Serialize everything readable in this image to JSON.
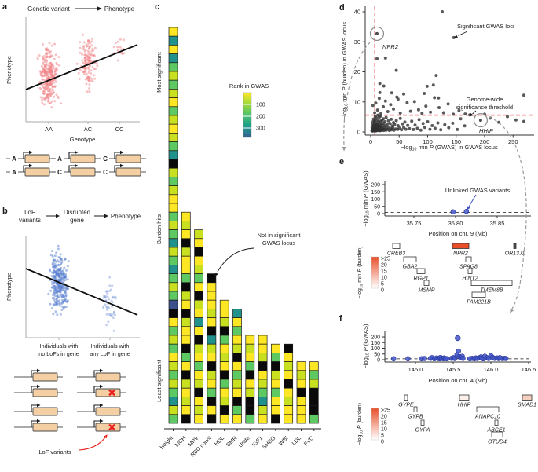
{
  "panels": {
    "a": {
      "label": "a",
      "title_left": "Genetic variant",
      "title_right": "Phenotype",
      "ylabel": "Phenotype",
      "xlabel": "Genotype"
    },
    "b": {
      "label": "b",
      "t1": "LoF",
      "t2": "variants",
      "t3": "Disrupted",
      "t4": "gene",
      "t5": "Phenotype",
      "ylabel": "Phenotype",
      "g1a": "Individuals with",
      "g1b": "no LoFs in gene",
      "g2a": "Individuals with",
      "g2b": "any LoF in gene",
      "lof_label": "LoF variants"
    },
    "c": {
      "label": "c",
      "most": "Most significant",
      "mid": "Burden hits",
      "least": "Least significant",
      "cbar_title": "Rank in GWAS",
      "ann1": "Not in significant",
      "ann2": "GWAS locus"
    },
    "d": {
      "label": "d",
      "ann_sig": "Significant GWAS loci",
      "ann_thr1": "Genome-wide",
      "ann_thr2": "significance threshold",
      "npr2": "NPR2",
      "hhip": "HHIP"
    },
    "e": {
      "label": "e",
      "ann": "Unlinked GWAS variants",
      "xlabel": "Position on chr. 9 (Mb)"
    },
    "f": {
      "label": "f",
      "xlabel": "Position on chr. 4 (Mb)"
    }
  },
  "colors": {
    "red_scatter": "#f2868a",
    "blue_scatter": "#5a7fd0",
    "gene_box": "#f4cfa4",
    "gene_border": "#4a4a4a",
    "lof_red": "#e8231f",
    "dark_dot": "#2f2f2f",
    "threshold_red": "#e8262a",
    "blue_dot": "#4356c9",
    "blue_dot_edge": "#2b3a9e",
    "burden_red": "#e8502b",
    "smad1_pink": "#f5cfc0",
    "connector": "#9a9a9a",
    "viridis": {
      "Y": "#fde725",
      "C": "#c8e020",
      "G": "#5ec962",
      "T": "#21918c",
      "B": "#3b528b",
      "K": "#0a0a0a"
    }
  },
  "chart_data": [
    {
      "id": "a",
      "type": "scatter",
      "categories": [
        "AA",
        "AC",
        "CC"
      ],
      "alleles": [
        [
          "A",
          "A"
        ],
        [
          "A",
          "C"
        ],
        [
          "C",
          "C"
        ]
      ],
      "clusters": [
        {
          "cx": 62,
          "xs": 5.5,
          "cy": 96,
          "ys": 30,
          "n": 300
        },
        {
          "cx": 112,
          "xs": 5,
          "cy": 80,
          "ys": 27,
          "n": 140
        },
        {
          "cx": 152,
          "xs": 4,
          "cy": 62,
          "ys": 13,
          "n": 18
        }
      ],
      "trend": [
        33,
        114,
        175,
        57
      ]
    },
    {
      "id": "b",
      "type": "scatter",
      "clusters": [
        {
          "cx": 75,
          "xs": 5.5,
          "cy": 100,
          "ys": 31,
          "n": 300
        },
        {
          "cx": 140,
          "xs": 5,
          "cy": 127,
          "ys": 27,
          "n": 48
        }
      ],
      "trend": [
        33,
        82,
        175,
        141
      ],
      "lof_rows": [
        1,
        3
      ]
    },
    {
      "id": "c",
      "type": "heatmap",
      "cbar_ticks": [
        100,
        200,
        300
      ],
      "cbar_max": 380,
      "traits": [
        {
          "name": "Height",
          "cells": "YTYTGCGCYGCYCGTKCGCYYGCGTCGTGCGBKYGCGYCGCGTCG"
        },
        {
          "name": "MCH",
          "cells": "YCYKCYYGKCYKCYYKGYKCYCYK"
        },
        {
          "name": "MPV",
          "cells": "CYKYCGYKCYTYKCYGYCKYCY"
        },
        {
          "name": "RBC count",
          "cells": "KYYYCYKTCYKCYGKYK"
        },
        {
          "name": "HDL",
          "cells": "YYCKGYCYKGYCKY"
        },
        {
          "name": "BMR",
          "cells": "TYGYCKYGCYKGY"
        },
        {
          "name": "Urate",
          "cells": "YCYGKYCKKG"
        },
        {
          "name": "IGF1",
          "cells": "YYCKYCGTCY"
        },
        {
          "name": "SHBG",
          "cells": "YGKCYGYYK"
        },
        {
          "name": "WBI",
          "cells": "KYCYKYCYY"
        },
        {
          "name": "LDL",
          "cells": "YCYKYYY"
        },
        {
          "name": "FVC",
          "cells": "YGCKKKG"
        }
      ]
    },
    {
      "id": "d",
      "type": "scatter",
      "xlim": [
        0,
        283
      ],
      "ylim": [
        0,
        42
      ],
      "xticks": [
        0,
        50,
        100,
        150,
        200,
        250
      ],
      "yticks": [
        0,
        10,
        20,
        30,
        40
      ],
      "sig_x": 7.3,
      "sig_y": 5.6,
      "xlabel": "−log_10_ min *P* (GWAS) in GWAS locus",
      "ylabel": "−log_10_ min *P* (burden) in GWAS locus",
      "highlights": [
        {
          "name": "NPR2",
          "x": 11,
          "y": 32.7
        },
        {
          "name": "HHIP",
          "x": 193,
          "y": 3.9
        }
      ],
      "points": [
        [
          2,
          0.4
        ],
        [
          2.5,
          1.5
        ],
        [
          3,
          0.8
        ],
        [
          3,
          2.6
        ],
        [
          3.5,
          0.3
        ],
        [
          4,
          1.2
        ],
        [
          4,
          3.4
        ],
        [
          4.5,
          0.6
        ],
        [
          5,
          2.1
        ],
        [
          5,
          0.9
        ],
        [
          5,
          4.3
        ],
        [
          5.5,
          1.7
        ],
        [
          6,
          0.4
        ],
        [
          6,
          2.9
        ],
        [
          6.5,
          1.1
        ],
        [
          7,
          0.6
        ],
        [
          7,
          3.7
        ],
        [
          7,
          1.9
        ],
        [
          7.5,
          0.3
        ],
        [
          8,
          2.4
        ],
        [
          8,
          0.9
        ],
        [
          8,
          5.1
        ],
        [
          8.5,
          1.4
        ],
        [
          9,
          0.5
        ],
        [
          9,
          3.1
        ],
        [
          9.5,
          2
        ],
        [
          10,
          0.8
        ],
        [
          10,
          4.6
        ],
        [
          10,
          1.6
        ],
        [
          10.5,
          0.4
        ],
        [
          11,
          2.7
        ],
        [
          11,
          1
        ],
        [
          11.5,
          3.9
        ],
        [
          12,
          0.6
        ],
        [
          12,
          1.9
        ],
        [
          12.5,
          5.6
        ],
        [
          13,
          0.9
        ],
        [
          13,
          2.4
        ],
        [
          13.5,
          1.3
        ],
        [
          14,
          0.5
        ],
        [
          14,
          3.3
        ],
        [
          14.5,
          2
        ],
        [
          15,
          0.8
        ],
        [
          15,
          4.9
        ],
        [
          15.5,
          1.5
        ],
        [
          16,
          0.4
        ],
        [
          16,
          2.6
        ],
        [
          17,
          1.1
        ],
        [
          17,
          3.6
        ],
        [
          17.5,
          0.7
        ],
        [
          18,
          1.9
        ],
        [
          18,
          5.3
        ],
        [
          19,
          0.5
        ],
        [
          19,
          2.8
        ],
        [
          20,
          1.4
        ],
        [
          20,
          3.9
        ],
        [
          21,
          0.8
        ],
        [
          21,
          2.2
        ],
        [
          22,
          1
        ],
        [
          22,
          4.4
        ],
        [
          23,
          0.5
        ],
        [
          23,
          2.9
        ],
        [
          24,
          1.7
        ],
        [
          25,
          0.9
        ],
        [
          25,
          3.4
        ],
        [
          26,
          2.1
        ],
        [
          27,
          0.6
        ],
        [
          27,
          4.8
        ],
        [
          28,
          1.3
        ],
        [
          29,
          2.5
        ],
        [
          30,
          0.8
        ],
        [
          31,
          3.7
        ],
        [
          32,
          1.6
        ],
        [
          33,
          0.5
        ],
        [
          34,
          2.8
        ],
        [
          35,
          1.1
        ],
        [
          36,
          4.2
        ],
        [
          37,
          0.7
        ],
        [
          38,
          2
        ],
        [
          39,
          1.4
        ],
        [
          40,
          3.1
        ],
        [
          41,
          0.6
        ],
        [
          42,
          2.4
        ],
        [
          44,
          1
        ],
        [
          45,
          3.8
        ],
        [
          47,
          0.8
        ],
        [
          48,
          2.1
        ],
        [
          50,
          1.3
        ],
        [
          52,
          4.5
        ],
        [
          54,
          0.7
        ],
        [
          56,
          2.7
        ],
        [
          58,
          1.5
        ],
        [
          60,
          3.3
        ],
        [
          62,
          0.9
        ],
        [
          65,
          2.2
        ],
        [
          68,
          1.1
        ],
        [
          72,
          3.6
        ],
        [
          75,
          0.8
        ],
        [
          78,
          2.3
        ],
        [
          82,
          1.2
        ],
        [
          85,
          4.1
        ],
        [
          88,
          0.6
        ],
        [
          92,
          2.8
        ],
        [
          95,
          1.5
        ],
        [
          100,
          3.4
        ],
        [
          104,
          0.9
        ],
        [
          108,
          2.1
        ],
        [
          113,
          1.2
        ],
        [
          118,
          3
        ],
        [
          123,
          0.7
        ],
        [
          130,
          2.4
        ],
        [
          137,
          1.4
        ],
        [
          144,
          2.9
        ],
        [
          152,
          0.8
        ],
        [
          158,
          4.4
        ],
        [
          165,
          2
        ],
        [
          4,
          8.8
        ],
        [
          7,
          6.4
        ],
        [
          9,
          9.6
        ],
        [
          12,
          7.3
        ],
        [
          15,
          11.2
        ],
        [
          18,
          6.1
        ],
        [
          22,
          8.4
        ],
        [
          26,
          10.3
        ],
        [
          30,
          6.8
        ],
        [
          35,
          9.1
        ],
        [
          40,
          7.6
        ],
        [
          46,
          11.6
        ],
        [
          52,
          6.3
        ],
        [
          58,
          12.6
        ],
        [
          64,
          9.7
        ],
        [
          70,
          6.9
        ],
        [
          77,
          10.1
        ],
        [
          84,
          7.4
        ],
        [
          90,
          6.2
        ],
        [
          97,
          8.6
        ],
        [
          105,
          6.6
        ],
        [
          112,
          11.4
        ],
        [
          120,
          8.1
        ],
        [
          128,
          6.4
        ],
        [
          136,
          9.3
        ],
        [
          145,
          5.9
        ],
        [
          155,
          7.1
        ],
        [
          166,
          6
        ],
        [
          174,
          5.7
        ],
        [
          200,
          5.9
        ],
        [
          210,
          4.6
        ],
        [
          225,
          3.2
        ],
        [
          240,
          5.1
        ],
        [
          255,
          4
        ],
        [
          269,
          12.2
        ],
        [
          269,
          3.5
        ],
        [
          94,
          12.8
        ],
        [
          11,
          24.4
        ],
        [
          26,
          24.6
        ],
        [
          45,
          20.5
        ],
        [
          115,
          18.8
        ],
        [
          16,
          16.1
        ],
        [
          23,
          15.3
        ],
        [
          99,
          15.2
        ],
        [
          110,
          15.6
        ],
        [
          16,
          13.1
        ],
        [
          37,
          13
        ],
        [
          119,
          11.3
        ],
        [
          48,
          10.9
        ],
        [
          146,
          31.4
        ],
        [
          125.5,
          40
        ]
      ]
    },
    {
      "id": "e",
      "type": "locus",
      "chrom": "chr. 9",
      "xticks": [
        "35.75",
        "35.80",
        "35.85"
      ],
      "yticks": [
        0,
        50,
        100,
        150,
        200
      ],
      "sig_y": 7.3,
      "ylabel": "−log_10_ min *P* (GWAS)",
      "cbar": "−log_10_ min *P* (burden)",
      "cbar_labels": [
        ">25",
        "20",
        "15",
        "10",
        "5",
        "0"
      ],
      "points": [
        [
          35.797,
          12
        ],
        [
          35.813,
          15
        ]
      ],
      "genes": [
        {
          "n": "CREB3",
          "x": 70,
          "w": 9,
          "r": 0,
          "f": "#ffffff"
        },
        {
          "n": "NPR2",
          "x": 146,
          "w": 21,
          "r": 0,
          "f": "#e8502b"
        },
        {
          "n": "OR13J1",
          "x": 224,
          "w": 3,
          "r": 0,
          "f": "#4a4a4a"
        },
        {
          "n": "GBA2",
          "x": 84,
          "w": 16,
          "r": 1,
          "f": "#ffffff"
        },
        {
          "n": "SPAG8",
          "x": 163,
          "w": 7,
          "r": 1,
          "f": "#ffffff"
        },
        {
          "n": "RGP1",
          "x": 101,
          "w": 10,
          "r": 2,
          "f": "#ffffff"
        },
        {
          "n": "HINT2",
          "x": 166,
          "w": 5,
          "r": 2,
          "f": "#ffffff"
        },
        {
          "n": "MSMP",
          "x": 110,
          "w": 6,
          "r": 3,
          "f": "#ffffff"
        },
        {
          "n": "TMEM8B",
          "x": 170,
          "w": 52,
          "r": 3,
          "f": "#ffffff"
        },
        {
          "n": "FAM221B",
          "x": 171,
          "w": 17,
          "r": 4,
          "f": "#ffffff"
        }
      ]
    },
    {
      "id": "f",
      "type": "locus",
      "chrom": "chr. 4",
      "xticks": [
        "145.0",
        "145.5",
        "146.0",
        "146.5"
      ],
      "yticks": [
        0,
        50,
        100,
        150,
        200
      ],
      "sig_y": 8,
      "ylabel": "−log_10_ *P* (GWAS)",
      "cbar": "−log_10_ *P* (burden)",
      "cbar_labels": [
        ">25",
        "20",
        "15",
        "10",
        "5",
        "0"
      ],
      "points": [
        [
          144.71,
          8
        ],
        [
          144.9,
          8
        ],
        [
          145.08,
          8
        ],
        [
          145.12,
          10
        ],
        [
          145.2,
          12
        ],
        [
          145.22,
          18
        ],
        [
          145.25,
          8
        ],
        [
          145.28,
          15
        ],
        [
          145.3,
          10
        ],
        [
          145.32,
          8
        ],
        [
          145.33,
          20
        ],
        [
          145.35,
          12
        ],
        [
          145.37,
          8
        ],
        [
          145.38,
          15
        ],
        [
          145.4,
          10
        ],
        [
          145.42,
          8
        ],
        [
          145.48,
          12
        ],
        [
          145.5,
          18
        ],
        [
          145.52,
          10
        ],
        [
          145.55,
          45
        ],
        [
          145.56,
          190
        ],
        [
          145.57,
          75
        ],
        [
          145.58,
          28
        ],
        [
          145.6,
          18
        ],
        [
          145.62,
          30
        ],
        [
          145.63,
          12
        ],
        [
          145.72,
          8
        ],
        [
          145.75,
          12
        ],
        [
          145.78,
          8
        ],
        [
          145.8,
          15
        ],
        [
          145.82,
          10
        ],
        [
          145.85,
          18
        ],
        [
          145.87,
          25
        ],
        [
          145.88,
          12
        ],
        [
          145.9,
          8
        ],
        [
          145.92,
          30
        ],
        [
          145.95,
          18
        ],
        [
          145.97,
          10
        ],
        [
          146,
          35
        ],
        [
          146.02,
          22
        ],
        [
          146.05,
          12
        ],
        [
          146.08,
          15
        ],
        [
          146.1,
          10
        ],
        [
          146.12,
          18
        ],
        [
          146.15,
          10
        ],
        [
          146.18,
          12
        ],
        [
          146.2,
          10
        ]
      ],
      "genes": [
        {
          "n": "GYPE",
          "x": 85,
          "w": 4,
          "r": 0,
          "f": "#ffffff"
        },
        {
          "n": "HHIP",
          "x": 155,
          "w": 12,
          "r": 0,
          "f": "#fdf1ec"
        },
        {
          "n": "SMAD1",
          "x": 235,
          "w": 12,
          "r": 0,
          "f": "#f5cfc0"
        },
        {
          "n": "GYPB",
          "x": 97,
          "w": 4,
          "r": 1,
          "f": "#ffffff"
        },
        {
          "n": "ANAPC10",
          "x": 177,
          "w": 28,
          "r": 1,
          "f": "#ffffff"
        },
        {
          "n": "GYPA",
          "x": 106,
          "w": 4,
          "r": 2,
          "f": "#ffffff"
        },
        {
          "n": "ABCE1",
          "x": 200,
          "w": 4,
          "r": 2,
          "f": "#ffffff"
        },
        {
          "n": "OTUD4",
          "x": 196,
          "w": 14,
          "r": 3,
          "f": "#ffffff"
        }
      ]
    }
  ]
}
